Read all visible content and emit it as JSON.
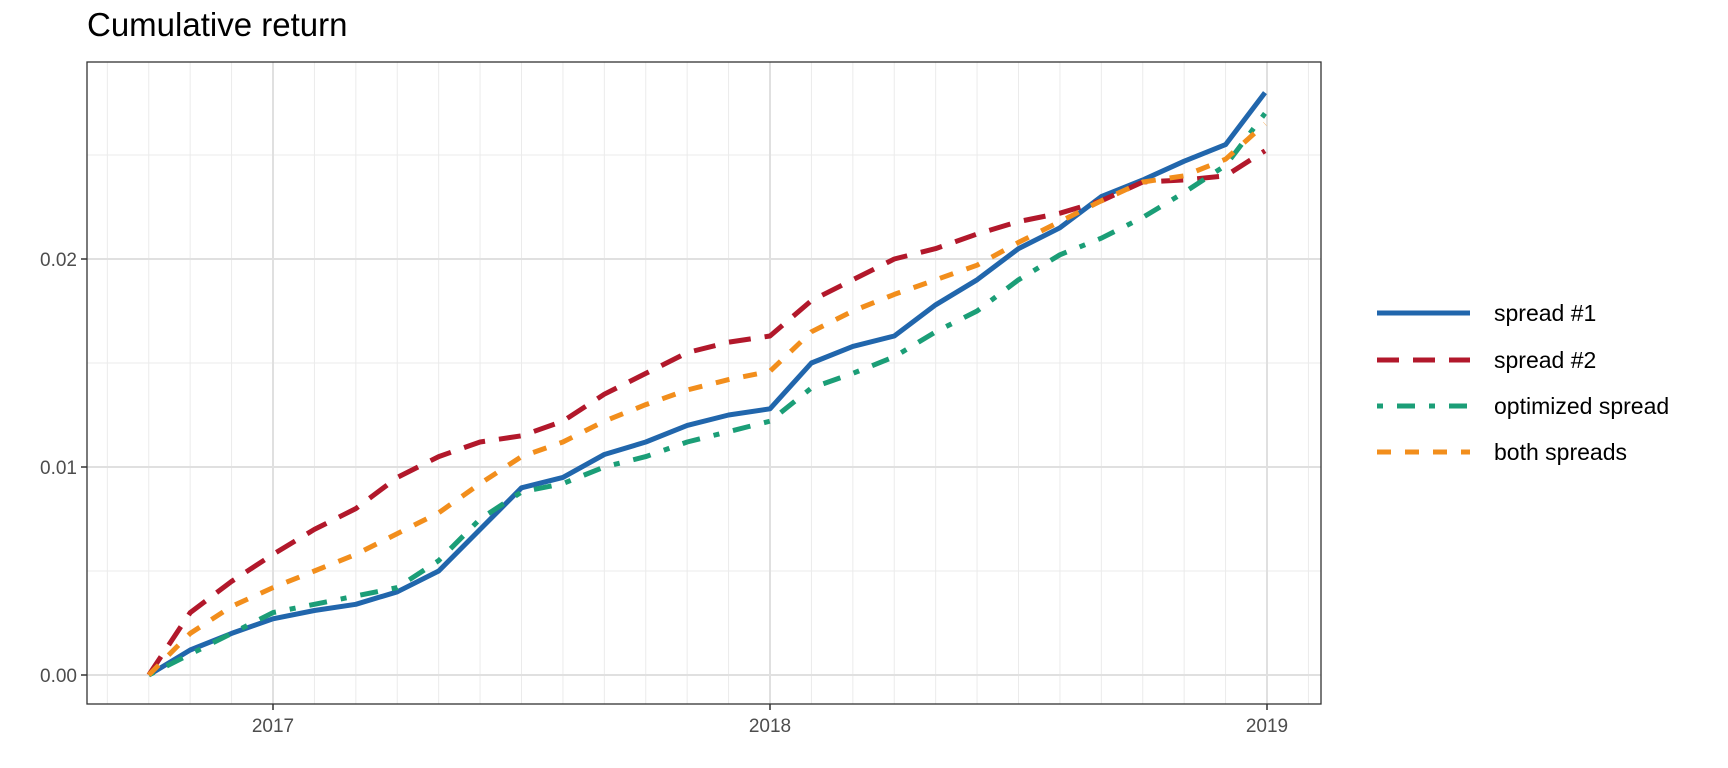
{
  "chart_data": {
    "type": "line",
    "title": "Cumulative return",
    "xlabel": "",
    "ylabel": "",
    "x_ticks": [
      "2017",
      "2018",
      "2019"
    ],
    "y_ticks": [
      "0.00",
      "0.01",
      "0.02"
    ],
    "ylim": [
      -0.0014,
      0.0296
    ],
    "xlim": [
      "2016-08",
      "2019-01"
    ],
    "grid": true,
    "legend_position": "right",
    "x": [
      "2016-10",
      "2016-11",
      "2016-12",
      "2017-01",
      "2017-02",
      "2017-03",
      "2017-04",
      "2017-05",
      "2017-06",
      "2017-07",
      "2017-08",
      "2017-09",
      "2017-10",
      "2017-11",
      "2017-12",
      "2018-01",
      "2018-02",
      "2018-03",
      "2018-04",
      "2018-05",
      "2018-06",
      "2018-07",
      "2018-08",
      "2018-09",
      "2018-10",
      "2018-11",
      "2018-12",
      "2018-12-31"
    ],
    "series": [
      {
        "name": "spread #1",
        "color": "#2166ac",
        "dash": "solid",
        "values": [
          0.0,
          0.0012,
          0.002,
          0.0027,
          0.0031,
          0.0034,
          0.004,
          0.005,
          0.007,
          0.009,
          0.0095,
          0.0106,
          0.0112,
          0.012,
          0.0125,
          0.0128,
          0.015,
          0.0158,
          0.0163,
          0.0178,
          0.019,
          0.0205,
          0.0215,
          0.023,
          0.0238,
          0.0247,
          0.0255,
          0.028
        ]
      },
      {
        "name": "spread #2",
        "color": "#b2182b",
        "dash": "longdash",
        "values": [
          0.0,
          0.003,
          0.0045,
          0.0058,
          0.007,
          0.008,
          0.0095,
          0.0105,
          0.0112,
          0.0115,
          0.0122,
          0.0135,
          0.0145,
          0.0155,
          0.016,
          0.0163,
          0.018,
          0.019,
          0.02,
          0.0205,
          0.0212,
          0.0218,
          0.0222,
          0.0228,
          0.0237,
          0.0238,
          0.024,
          0.0252
        ]
      },
      {
        "name": "optimized spread",
        "color": "#1b9e77",
        "dash": "dotdash",
        "values": [
          0.0,
          0.001,
          0.002,
          0.003,
          0.0034,
          0.0038,
          0.0042,
          0.0055,
          0.0075,
          0.0088,
          0.0092,
          0.01,
          0.0105,
          0.0112,
          0.0117,
          0.0122,
          0.0138,
          0.0145,
          0.0153,
          0.0165,
          0.0175,
          0.019,
          0.0202,
          0.021,
          0.022,
          0.0232,
          0.0245,
          0.027
        ]
      },
      {
        "name": "both spreads",
        "color": "#f28e1c",
        "dash": "dashed",
        "values": [
          0.0,
          0.002,
          0.0033,
          0.0042,
          0.005,
          0.0058,
          0.0068,
          0.0078,
          0.0092,
          0.0105,
          0.0112,
          0.0122,
          0.013,
          0.0137,
          0.0142,
          0.0146,
          0.0165,
          0.0175,
          0.0183,
          0.019,
          0.0197,
          0.0208,
          0.0218,
          0.0228,
          0.0237,
          0.024,
          0.0248,
          0.0265
        ]
      }
    ]
  },
  "legend": {
    "items": [
      {
        "label": "spread #1"
      },
      {
        "label": "spread #2"
      },
      {
        "label": "optimized spread"
      },
      {
        "label": "both spreads"
      }
    ]
  }
}
